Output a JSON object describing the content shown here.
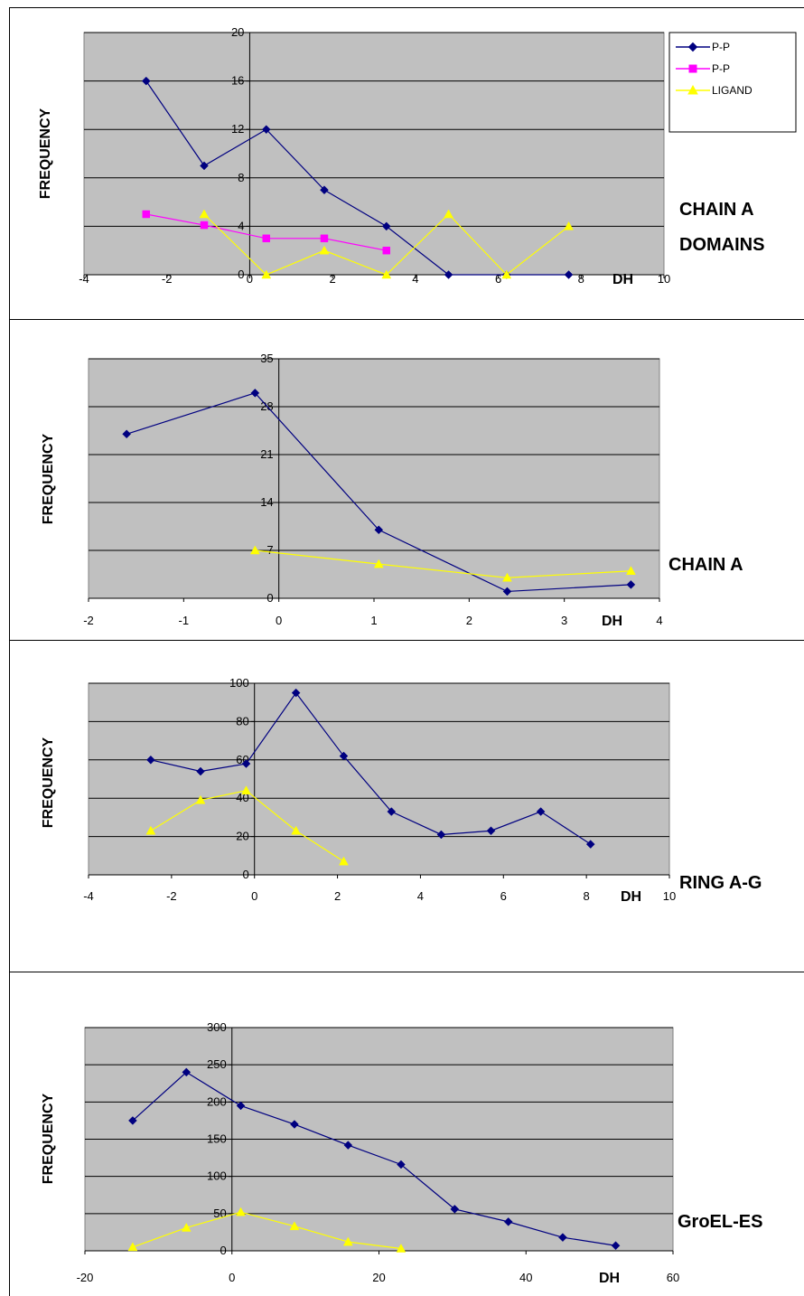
{
  "chart_data": [
    {
      "type": "line",
      "ylabel": "FREQUENCY",
      "xlabel": "DH",
      "side_label": [
        "CHAIN A",
        "DOMAINS"
      ],
      "xlim": [
        -4,
        10
      ],
      "xticks": [
        -4,
        -2,
        0,
        2,
        4,
        6,
        8,
        10
      ],
      "ylim": [
        0,
        20
      ],
      "yticks": [
        0,
        4,
        8,
        12,
        16,
        20
      ],
      "grid": true,
      "legend": {
        "position": "top-right",
        "entries": [
          "P-P",
          "P-P",
          "LIGAND"
        ]
      },
      "series": [
        {
          "name": "P-P",
          "color": "#000080",
          "marker": "diamond",
          "x": [
            -2.5,
            -1.1,
            0.4,
            1.8,
            3.3,
            4.8,
            6.2,
            7.7
          ],
          "y": [
            16,
            9,
            12,
            7,
            4,
            0,
            0,
            0
          ]
        },
        {
          "name": "P-P",
          "color": "#FF00FF",
          "marker": "square",
          "x": [
            -2.5,
            -1.1,
            0.4,
            1.8,
            3.3
          ],
          "y": [
            5,
            4.1,
            3,
            3,
            2
          ]
        },
        {
          "name": "LIGAND",
          "color": "#FFFF00",
          "marker": "triangle",
          "x": [
            -1.1,
            0.4,
            1.8,
            3.3,
            4.8,
            6.2,
            7.7
          ],
          "y": [
            5,
            0,
            2,
            0,
            5,
            0,
            4
          ]
        }
      ]
    },
    {
      "type": "line",
      "ylabel": "FREQUENCY",
      "xlabel": "DH",
      "side_label": [
        "CHAIN A"
      ],
      "xlim": [
        -2,
        4
      ],
      "xticks": [
        -2,
        -1,
        0,
        1,
        2,
        3,
        4
      ],
      "ylim": [
        0,
        35
      ],
      "yticks": [
        0,
        7,
        14,
        21,
        28,
        35
      ],
      "grid": true,
      "series": [
        {
          "color": "#000080",
          "marker": "diamond",
          "x": [
            -1.6,
            -0.25,
            1.05,
            2.4,
            3.7
          ],
          "y": [
            24,
            30,
            10,
            1,
            2
          ]
        },
        {
          "color": "#FFFF00",
          "marker": "triangle",
          "x": [
            -0.25,
            1.05,
            2.4,
            3.7
          ],
          "y": [
            7,
            5,
            3,
            4
          ]
        }
      ]
    },
    {
      "type": "line",
      "ylabel": "FREQUENCY",
      "xlabel": "DH",
      "side_label": [
        "RING A-G"
      ],
      "xlim": [
        -4,
        10
      ],
      "xticks": [
        -4,
        -2,
        0,
        2,
        4,
        6,
        8,
        10
      ],
      "ylim": [
        0,
        100
      ],
      "yticks": [
        0,
        20,
        40,
        60,
        80,
        100
      ],
      "grid": true,
      "series": [
        {
          "color": "#000080",
          "marker": "diamond",
          "x": [
            -2.5,
            -1.3,
            -0.2,
            1.0,
            2.15,
            3.3,
            4.5,
            5.7,
            6.9,
            8.1
          ],
          "y": [
            60,
            54,
            58,
            95,
            62,
            33,
            21,
            23,
            33,
            16
          ]
        },
        {
          "color": "#FFFF00",
          "marker": "triangle",
          "x": [
            -2.5,
            -1.3,
            -0.2,
            1.0,
            2.15
          ],
          "y": [
            23,
            39,
            44,
            23,
            7
          ]
        }
      ]
    },
    {
      "type": "line",
      "ylabel": "FREQUENCY",
      "xlabel": "DH",
      "side_label": [
        "GroEL-ES"
      ],
      "xlim": [
        -20,
        60
      ],
      "xticks": [
        -20,
        0,
        20,
        40,
        60
      ],
      "ylim": [
        0,
        300
      ],
      "yticks": [
        0,
        50,
        100,
        150,
        200,
        250,
        300
      ],
      "grid": true,
      "series": [
        {
          "color": "#000080",
          "marker": "diamond",
          "x": [
            -13.5,
            -6.2,
            1.2,
            8.5,
            15.8,
            23,
            30.3,
            37.6,
            45,
            52.2
          ],
          "y": [
            175,
            240,
            195,
            170,
            142,
            116,
            56,
            39,
            18,
            7
          ]
        },
        {
          "color": "#FFFF00",
          "marker": "triangle",
          "x": [
            -13.5,
            -6.2,
            1.2,
            8.5,
            15.8,
            23
          ],
          "y": [
            5,
            31,
            52,
            33,
            12,
            3
          ]
        }
      ]
    }
  ]
}
